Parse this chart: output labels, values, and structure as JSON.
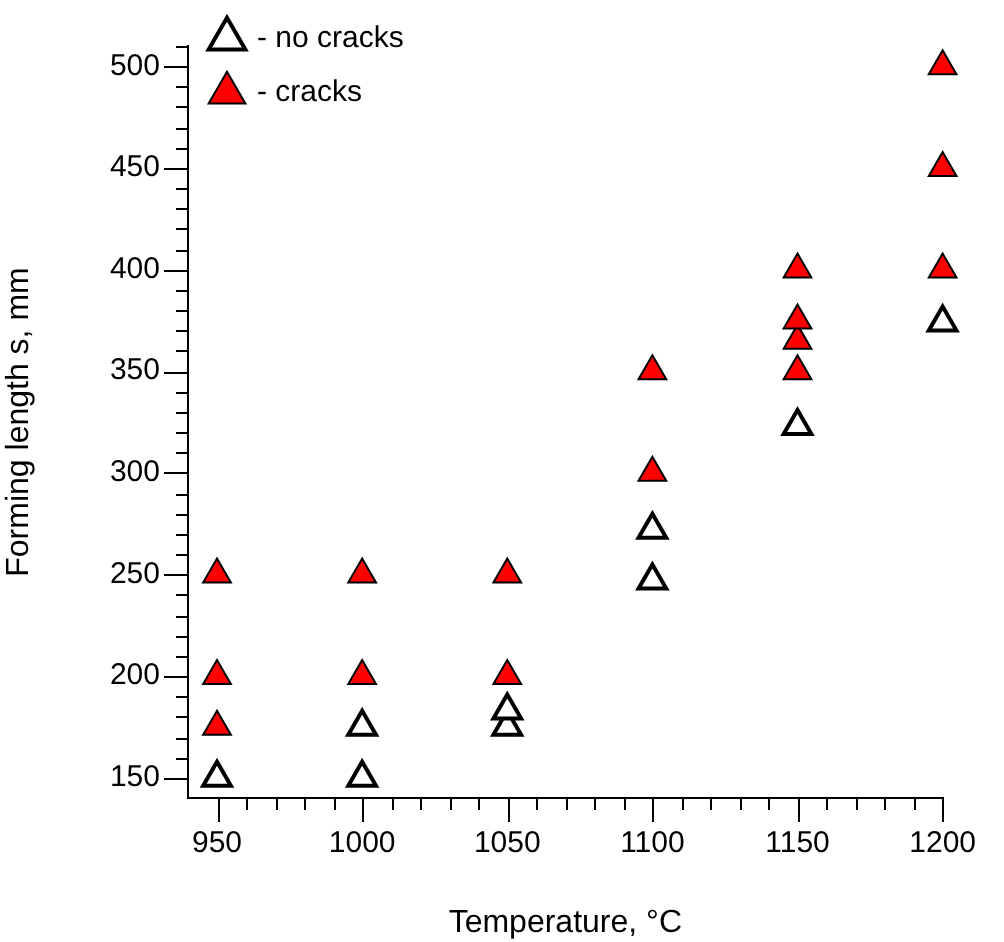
{
  "chart_data": {
    "type": "scatter",
    "xlabel": "Temperature, °C",
    "ylabel": "Forming length s, mm",
    "xlim": [
      940,
      1200
    ],
    "ylim": [
      140,
      510
    ],
    "xticks": [
      950,
      {
        "value": 960,
        "label": null
      },
      {
        "value": 970,
        "label": null
      },
      {
        "value": 980,
        "label": null
      },
      {
        "value": 990,
        "label": null
      },
      1000,
      {
        "value": 1010,
        "label": null
      },
      {
        "value": 1020,
        "label": null
      },
      {
        "value": 1030,
        "label": null
      },
      {
        "value": 1040,
        "label": null
      },
      1050,
      {
        "value": 1060,
        "label": null
      },
      {
        "value": 1070,
        "label": null
      },
      {
        "value": 1080,
        "label": null
      },
      {
        "value": 1090,
        "label": null
      },
      1100,
      {
        "value": 1110,
        "label": null
      },
      {
        "value": 1120,
        "label": null
      },
      {
        "value": 1130,
        "label": null
      },
      {
        "value": 1140,
        "label": null
      },
      1150,
      {
        "value": 1160,
        "label": null
      },
      {
        "value": 1170,
        "label": null
      },
      {
        "value": 1180,
        "label": null
      },
      {
        "value": 1190,
        "label": null
      },
      1200
    ],
    "yticks": [
      150,
      {
        "value": 160,
        "label": null
      },
      {
        "value": 170,
        "label": null
      },
      {
        "value": 180,
        "label": null
      },
      {
        "value": 190,
        "label": null
      },
      200,
      {
        "value": 210,
        "label": null
      },
      {
        "value": 220,
        "label": null
      },
      {
        "value": 230,
        "label": null
      },
      {
        "value": 240,
        "label": null
      },
      250,
      {
        "value": 260,
        "label": null
      },
      {
        "value": 270,
        "label": null
      },
      {
        "value": 280,
        "label": null
      },
      {
        "value": 290,
        "label": null
      },
      300,
      {
        "value": 310,
        "label": null
      },
      {
        "value": 320,
        "label": null
      },
      {
        "value": 330,
        "label": null
      },
      {
        "value": 340,
        "label": null
      },
      350,
      {
        "value": 360,
        "label": null
      },
      {
        "value": 370,
        "label": null
      },
      {
        "value": 380,
        "label": null
      },
      {
        "value": 390,
        "label": null
      },
      400,
      {
        "value": 410,
        "label": null
      },
      {
        "value": 420,
        "label": null
      },
      {
        "value": 430,
        "label": null
      },
      {
        "value": 440,
        "label": null
      },
      450,
      {
        "value": 460,
        "label": null
      },
      {
        "value": 470,
        "label": null
      },
      {
        "value": 480,
        "label": null
      },
      {
        "value": 490,
        "label": null
      },
      500,
      {
        "value": 510,
        "label": null
      }
    ],
    "grid": false,
    "legend": "top left",
    "marker": "triangle",
    "series": [
      {
        "name": "- no cracks",
        "color": "#000000",
        "x": [
          950,
          1000,
          1000,
          1050,
          1050,
          1100,
          1100,
          1150,
          1200
        ],
        "values": [
          150,
          150,
          175,
          175,
          183,
          247,
          272,
          323,
          374
        ]
      },
      {
        "name": "- cracks",
        "color": "#ff0000",
        "x": [
          950,
          950,
          950,
          1000,
          1000,
          1050,
          1050,
          1100,
          1100,
          1150,
          1150,
          1150,
          1150,
          1200,
          1200,
          1200
        ],
        "values": [
          175,
          200,
          250,
          200,
          250,
          200,
          250,
          300,
          350,
          350,
          365,
          375,
          400,
          400,
          450,
          500
        ]
      }
    ]
  }
}
